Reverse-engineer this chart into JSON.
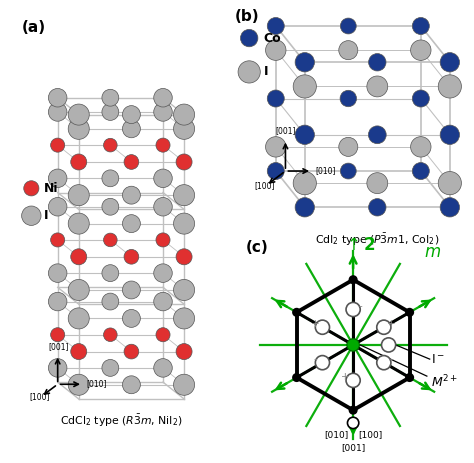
{
  "ni_color": "#e03030",
  "i_color": "#b0b0b0",
  "co_color": "#1a3a8c",
  "line_color": "#c0c0c0",
  "green_color": "#00aa00",
  "black": "#000000",
  "caption_a": "CdCl$_2$ type ($R\\bar{3}m$, NiI$_2$)",
  "caption_b": "CdI$_2$ type ($P\\bar{3}m1$, CoI$_2$)",
  "panel_a": "(a)",
  "panel_b": "(b)",
  "panel_c": "(c)",
  "legend_ni": "Ni",
  "legend_i": "I",
  "legend_co": "Co",
  "r_ni": 0.38,
  "r_i_a": 0.5,
  "r_i_b": 0.48,
  "r_co": 0.4
}
